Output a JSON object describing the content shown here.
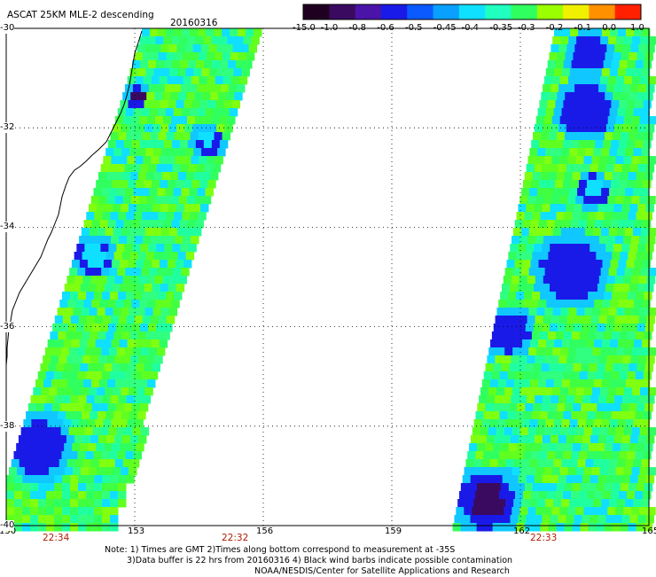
{
  "product_title": "ASCAT 25KM MLE-2 descending",
  "date": "20160316",
  "colorbar": {
    "labels": [
      "-15.0",
      "-1.0",
      "-0.8",
      "-0.6",
      "-0.5",
      "-0.45",
      "-0.4",
      "-0.35",
      "-0.3",
      "-0.2",
      "-0.1",
      "0.0",
      "1.0"
    ],
    "colors": [
      "#200020",
      "#3a0a60",
      "#4a14a8",
      "#1a1ae8",
      "#0a5aff",
      "#0aa0ff",
      "#10e0ff",
      "#20ffc0",
      "#30ff60",
      "#9aff00",
      "#f0f000",
      "#ff9000",
      "#ff2000"
    ]
  },
  "x_ticks": [
    "150",
    "153",
    "156",
    "159",
    "162",
    "165"
  ],
  "y_ticks": [
    "-30",
    "-32",
    "-34",
    "-36",
    "-38",
    "-40"
  ],
  "pass_times": [
    "22:34",
    "22:32",
    "22:33"
  ],
  "notes": [
    "Note: 1) Times are GMT 2)Times along bottom correspond to measurement at -35S",
    "3)Data buffer is 22 hrs from 20160316 4) Black wind barbs indicate possible contamination",
    "NOAA/NESDIS/Center for Satellite Applications and Research"
  ],
  "map_extent": {
    "lon": [
      150,
      165
    ],
    "lat": [
      -40,
      -30
    ]
  },
  "swaths": [
    {
      "name": "west",
      "time": "22:34"
    },
    {
      "name": "east",
      "time": "22:33"
    }
  ]
}
